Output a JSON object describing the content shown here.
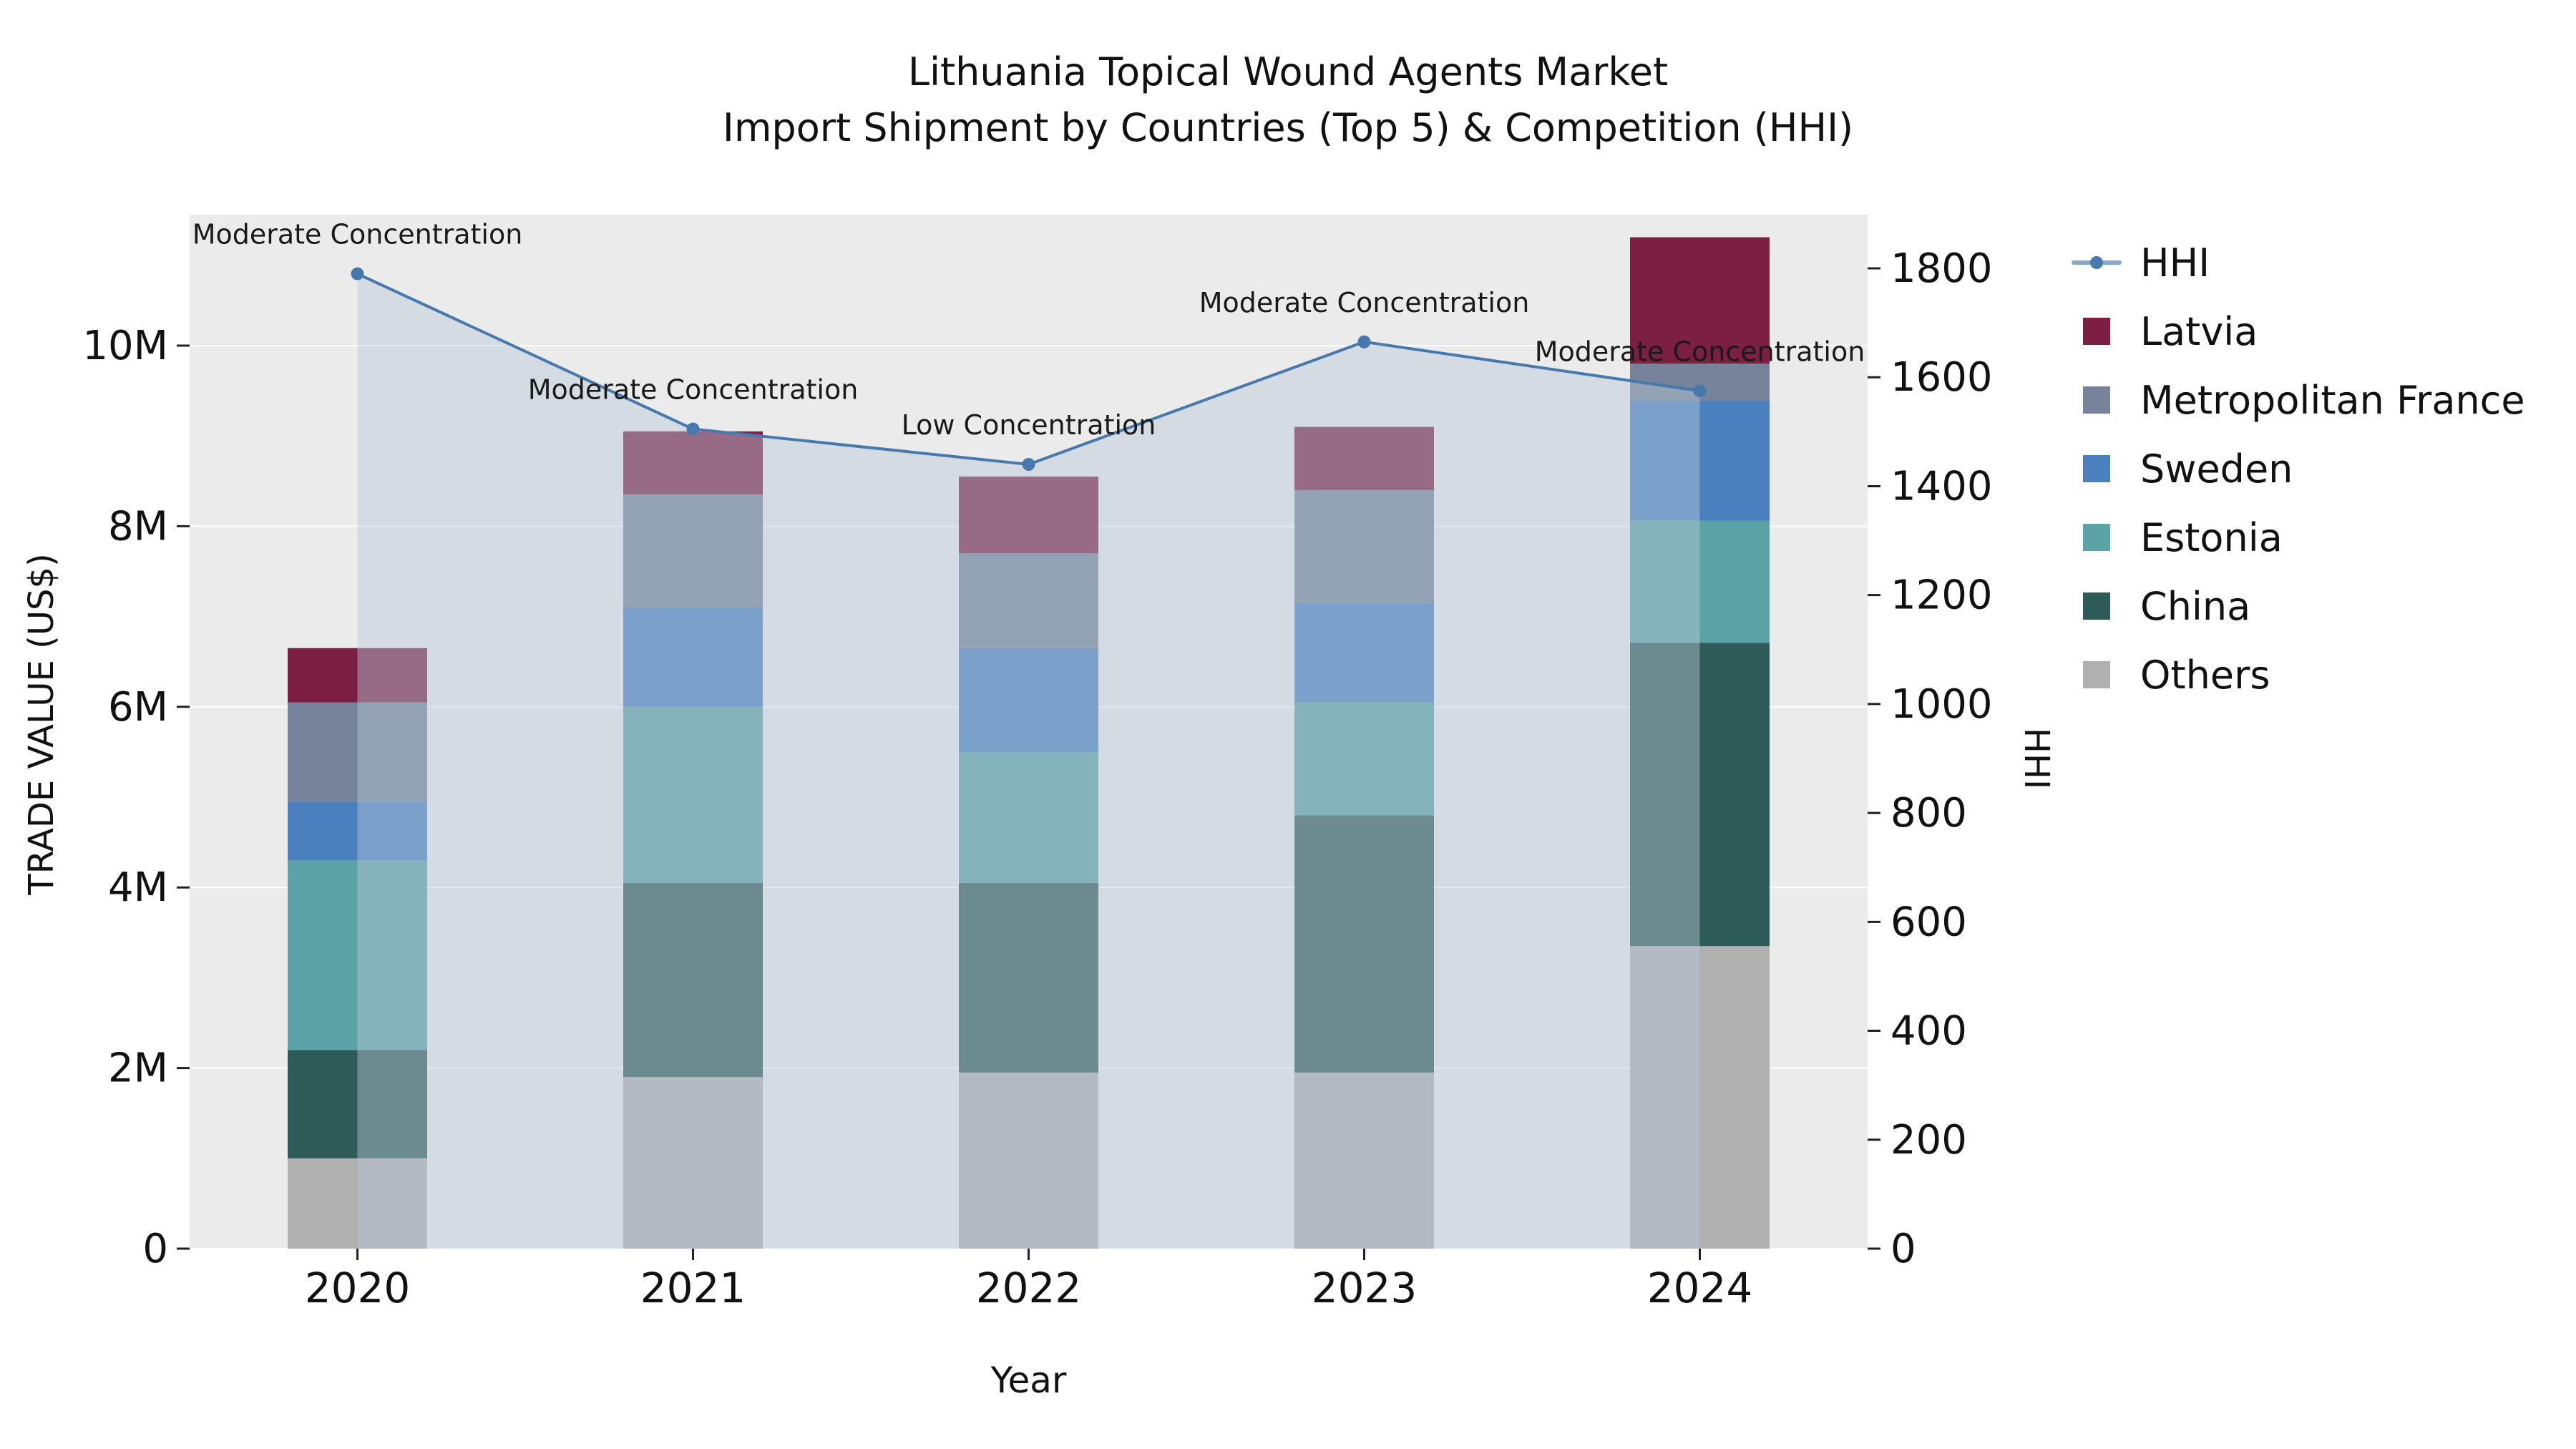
{
  "title": {
    "line1": "Lithuania Topical Wound Agents Market",
    "line2": "Import Shipment by Countries (Top 5) & Competition (HHI)"
  },
  "axes": {
    "x_label": "Year",
    "y_left_label": "TRADE VALUE (US$)",
    "y_right_label": "HHI",
    "y_left_ticks": [
      "0",
      "2M",
      "4M",
      "6M",
      "8M",
      "10M"
    ],
    "y_right_ticks": [
      "0",
      "200",
      "400",
      "600",
      "800",
      "1000",
      "1200",
      "1400",
      "1600",
      "1800"
    ]
  },
  "chart_data": {
    "type": "bar",
    "stacked": true,
    "title": "Lithuania Topical Wound Agents Market — Import Shipment by Countries (Top 5) & Competition (HHI)",
    "xlabel": "Year",
    "ylabel_left": "TRADE VALUE (US$)",
    "ylabel_right": "HHI",
    "categories": [
      "2020",
      "2021",
      "2022",
      "2023",
      "2024"
    ],
    "value_unit": "million US$",
    "y_left": {
      "min": 0,
      "max": 10,
      "tick_step": 2,
      "suffix": "M"
    },
    "y_right": {
      "min": 0,
      "max": 1800,
      "tick_step": 200
    },
    "series": [
      {
        "name": "Others",
        "color": "#b0b0b0",
        "values": [
          1.0,
          1.9,
          1.95,
          1.95,
          3.35
        ]
      },
      {
        "name": "China",
        "color": "#2e5a57",
        "values": [
          1.2,
          2.15,
          2.1,
          2.85,
          3.36
        ]
      },
      {
        "name": "Estonia",
        "color": "#5ba3a6",
        "values": [
          2.1,
          1.95,
          1.45,
          1.25,
          1.35
        ]
      },
      {
        "name": "Sweden",
        "color": "#4a80bd",
        "values": [
          0.65,
          1.1,
          1.15,
          1.1,
          1.33
        ]
      },
      {
        "name": "Metropolitan France",
        "color": "#76839a",
        "values": [
          1.1,
          1.25,
          1.05,
          1.25,
          0.41
        ]
      },
      {
        "name": "Latvia",
        "color": "#7c1f43",
        "values": [
          0.6,
          0.7,
          0.85,
          0.7,
          1.4
        ]
      }
    ],
    "line_series": {
      "name": "HHI",
      "color": "#4779ad",
      "area_fill": "#b8c8d8",
      "area_opacity": 0.45,
      "values": [
        1790,
        1505,
        1440,
        1665,
        1575
      ]
    },
    "annotations": [
      "Moderate Concentration",
      "Moderate Concentration",
      "Low Concentration",
      "Moderate Concentration",
      "Moderate Concentration"
    ],
    "grid": true,
    "legend_position": "right"
  },
  "legend": {
    "items": [
      {
        "label": "HHI",
        "type": "line",
        "color": "#4779ad"
      },
      {
        "label": "Latvia",
        "type": "square",
        "color": "#7c1f43"
      },
      {
        "label": "Metropolitan France",
        "type": "square",
        "color": "#76839a"
      },
      {
        "label": "Sweden",
        "type": "square",
        "color": "#4a80bd"
      },
      {
        "label": "Estonia",
        "type": "square",
        "color": "#5ba3a6"
      },
      {
        "label": "China",
        "type": "square",
        "color": "#2e5a57"
      },
      {
        "label": "Others",
        "type": "square",
        "color": "#b0b0b0"
      }
    ]
  },
  "plot_style": {
    "background": "#ebebeb",
    "gridline_color": "#ffffff",
    "tick_color": "#222222"
  }
}
